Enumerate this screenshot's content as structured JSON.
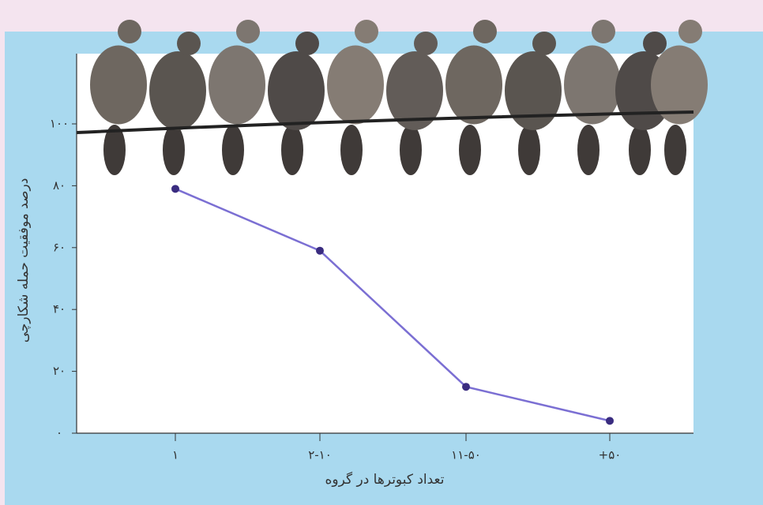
{
  "chart_data": {
    "type": "line",
    "x_label": "تعداد کبوترها در گروه",
    "y_label": "درصد موفقیت حمله شکارچی",
    "categories": [
      "۱",
      "۲-۱۰",
      "۱۱-۵۰",
      "+۵۰"
    ],
    "values": [
      79,
      59,
      15,
      4
    ],
    "color": "#7b6fd3",
    "ylim": [
      0,
      100
    ],
    "yticks": [
      {
        "value": 0,
        "label": "۰"
      },
      {
        "value": 20,
        "label": "۲۰"
      },
      {
        "value": 40,
        "label": "۴۰"
      },
      {
        "value": 60,
        "label": "۶۰"
      },
      {
        "value": 80,
        "label": "۸۰"
      },
      {
        "value": 100,
        "label": "۱۰۰"
      }
    ]
  }
}
